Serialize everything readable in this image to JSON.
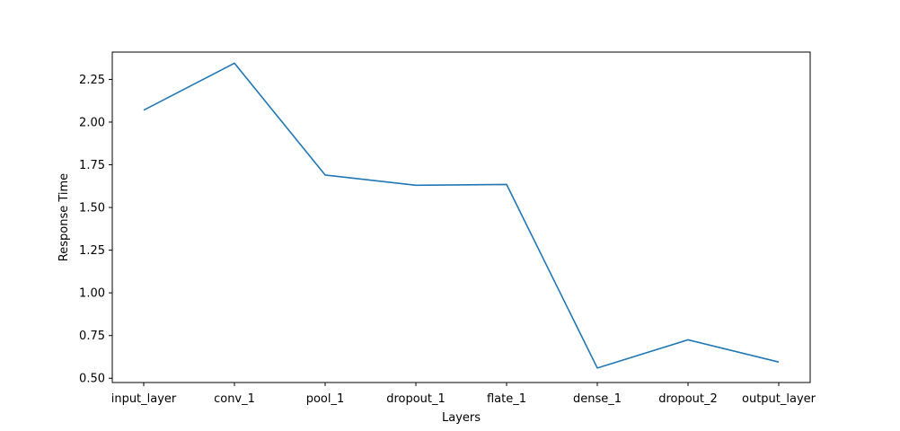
{
  "chart_data": {
    "type": "line",
    "title": "",
    "xlabel": "Layers",
    "ylabel": "Response Time",
    "categories": [
      "input_layer",
      "conv_1",
      "pool_1",
      "dropout_1",
      "flate_1",
      "dense_1",
      "dropout_2",
      "output_layer"
    ],
    "series": [
      {
        "name": "Response Time",
        "color": "#1f77b4",
        "values": [
          2.07,
          2.345,
          1.69,
          1.63,
          1.635,
          0.56,
          0.725,
          0.595
        ]
      }
    ],
    "ylim": [
      0.475,
      2.41
    ],
    "yticks": [
      0.5,
      0.75,
      1.0,
      1.25,
      1.5,
      1.75,
      2.0,
      2.25
    ],
    "ytick_labels": [
      "0.50",
      "0.75",
      "1.00",
      "1.25",
      "1.50",
      "1.75",
      "2.00",
      "2.25"
    ],
    "grid": false,
    "legend": "none"
  }
}
